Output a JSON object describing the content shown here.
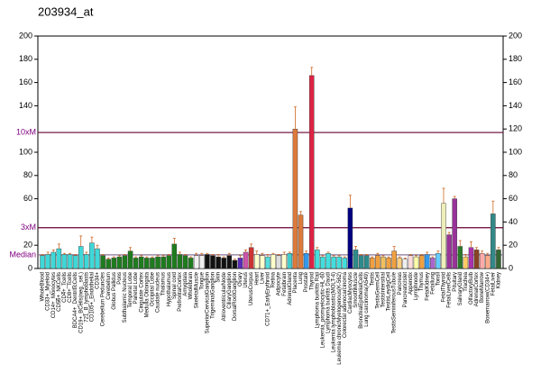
{
  "chart_data": {
    "type": "bar",
    "title": "203934_at",
    "categories": [
      "WholeBlood",
      "CD33+_Myeloid",
      "CD14+_Monocytes",
      "CD56+_NKCells",
      "CD4+_Tcells",
      "CD8+_Tcells",
      "BDCA4+_DentriticCells",
      "CD19+_BCells(neg._sel.)",
      "721_B_lymphoblasts",
      "CD105+_Endothelial",
      "CD34+",
      "Cerebellum Peduncles",
      "Cerebellum",
      "Globus Pallidus",
      "Pons",
      "Subthalamic Nucleus",
      "Temporal Lobe",
      "Parietal Lobe",
      "Cingulate Cortex",
      "Medulla Oblongata",
      "Occipital Lobe",
      "Caudate nucleus",
      "Thalamus",
      "Hypothalamus",
      "Spinal cord",
      "PrefrontalCortex",
      "Amygdala",
      "Wholebrain",
      "SkeletalMuscle",
      "Tongue",
      "SuperiorCervicalGanglion",
      "TrigeminalGanglion",
      "Skin",
      "AtrioventricularNode",
      "CiliaryGanglion",
      "DorsalRootGanglion",
      "Ovary",
      "Uterus",
      "UterusCorpus",
      "Heart",
      "Liver",
      "CD71+_EarlyErythroid",
      "Retina",
      "Adipocyte",
      "Fetalbrain",
      "AdrenalGland",
      "Placenta",
      "Lung",
      "Prostate",
      "Thyroid",
      "Lymphoma burkitts Raji",
      "Leukemia_promyelocytic-HL-60",
      "Lymphoma burkitts Daudi",
      "Leukemia lymphoblastic(MOLT-4)",
      "Leukemia chronicMyelogenous(K-562)",
      "Colorectal adenocarcinoma",
      "CardiacMyocytes",
      "SmoothMuscle",
      "BronchialEpithelialCells",
      "Lung carcinoma(A549)",
      "Testis",
      "TestisGermCell",
      "TestisIntersitial",
      "TestisLeydigCell",
      "TestisSeminiferousTubule",
      "Pancreas",
      "PancreaticIslet",
      "Appendix",
      "Lymphnode",
      "Thymus",
      "FetalKidney",
      "Fetallung",
      "Tonsil",
      "FetalThyroid",
      "FetalLiverCells",
      "Pituitary",
      "SalivaryGland",
      "Trachea",
      "OlfactoryBulb",
      "AdrenalCortex",
      "BoneMarrow",
      "Bonemarrow(CD34+)",
      "FetalLiver",
      "Kidney"
    ],
    "values": [
      11,
      12,
      14,
      17,
      12,
      12,
      11,
      19,
      12,
      22,
      17,
      11,
      8,
      9,
      10,
      11,
      15,
      9,
      10,
      9,
      9,
      10,
      10,
      11,
      21,
      12,
      11,
      9,
      11,
      11,
      12,
      11,
      10,
      9,
      11,
      7,
      9,
      14,
      18,
      12,
      11,
      10,
      12,
      11,
      12,
      13,
      120,
      46,
      13,
      166,
      16,
      10,
      13,
      10,
      10,
      9,
      52,
      16,
      11,
      11,
      9,
      11,
      10,
      9,
      15,
      9,
      8,
      11,
      10,
      11,
      12,
      9,
      13,
      56,
      29,
      60,
      19,
      10,
      18,
      16,
      13,
      11,
      47,
      16
    ],
    "errors": [
      1,
      2,
      2,
      4,
      1,
      1,
      1,
      9,
      2,
      5,
      3,
      1,
      1,
      1,
      1,
      1,
      3,
      1,
      1,
      1,
      1,
      1,
      1,
      1,
      5,
      2,
      1,
      1,
      2,
      2,
      1,
      1,
      2,
      1,
      2,
      1,
      2,
      2,
      3,
      3,
      2,
      2,
      1,
      1,
      2,
      1,
      19,
      3,
      2,
      7,
      2,
      1,
      1,
      1,
      1,
      1,
      11,
      3,
      1,
      1,
      1,
      2,
      1,
      1,
      4,
      1,
      1,
      1,
      1,
      1,
      2,
      1,
      2,
      13,
      2,
      2,
      5,
      2,
      5,
      2,
      2,
      2,
      11,
      2
    ],
    "colors": [
      "#3fd8d8",
      "#3fd8d8",
      "#3fd8d8",
      "#3fd8d8",
      "#3fd8d8",
      "#3fd8d8",
      "#3fd8d8",
      "#3fd8d8",
      "#3fd8d8",
      "#3fd8d8",
      "#3fd8d8",
      "#1e7b1e",
      "#1e7b1e",
      "#1e7b1e",
      "#1e7b1e",
      "#1e7b1e",
      "#1e7b1e",
      "#1e7b1e",
      "#1e7b1e",
      "#1e7b1e",
      "#1e7b1e",
      "#1e7b1e",
      "#1e7b1e",
      "#1e7b1e",
      "#1e7b1e",
      "#1e7b1e",
      "#1e7b1e",
      "#1e7b1e",
      "#f0f0f0",
      "#f0f0f0",
      "#111111",
      "#111111",
      "#111111",
      "#111111",
      "#111111",
      "#111111",
      "#5a2ab8",
      "#cc55aa",
      "#cc3333",
      "#ffffcc",
      "#ffffcc",
      "#55dddd",
      "#ffffcc",
      "#dddddd",
      "#ffffcc",
      "#44cccc",
      "#dd7a3a",
      "#dd7a3a",
      "#3399ee",
      "#dd2244",
      "#44dddd",
      "#44dddd",
      "#44dddd",
      "#44dddd",
      "#44dddd",
      "#44dddd",
      "#000080",
      "#2e8b8b",
      "#2e8b8b",
      "#2e8b8b",
      "#f0a040",
      "#f0a040",
      "#f0c060",
      "#f0a040",
      "#f0a040",
      "#ffd080",
      "#eeeeee",
      "#ffdddd",
      "#ffffaa",
      "#f0a040",
      "#3399ee",
      "#aa66cc",
      "#66ccff",
      "#eeeebb",
      "#993399",
      "#993399",
      "#2a7a2a",
      "#ffcc66",
      "#aa33aa",
      "#884422",
      "#ffaaaa",
      "#ffaa88",
      "#338888",
      "#336633"
    ],
    "error_color": "#cc6622",
    "ylim": [
      0,
      200
    ],
    "yticks": [
      0,
      20,
      60,
      80,
      100,
      140,
      160,
      180,
      200
    ],
    "y2lim": [
      0,
      200
    ],
    "y2ticks": [
      0,
      20,
      40,
      60,
      80,
      100,
      120,
      140,
      160,
      180,
      200
    ],
    "thresholds": [
      {
        "label": "10xM",
        "value": 117,
        "color": "#660033"
      },
      {
        "label": "3xM",
        "value": 35.1,
        "color": "#660033"
      },
      {
        "label": "Median",
        "value": 11.7,
        "color": "#887799"
      }
    ]
  }
}
